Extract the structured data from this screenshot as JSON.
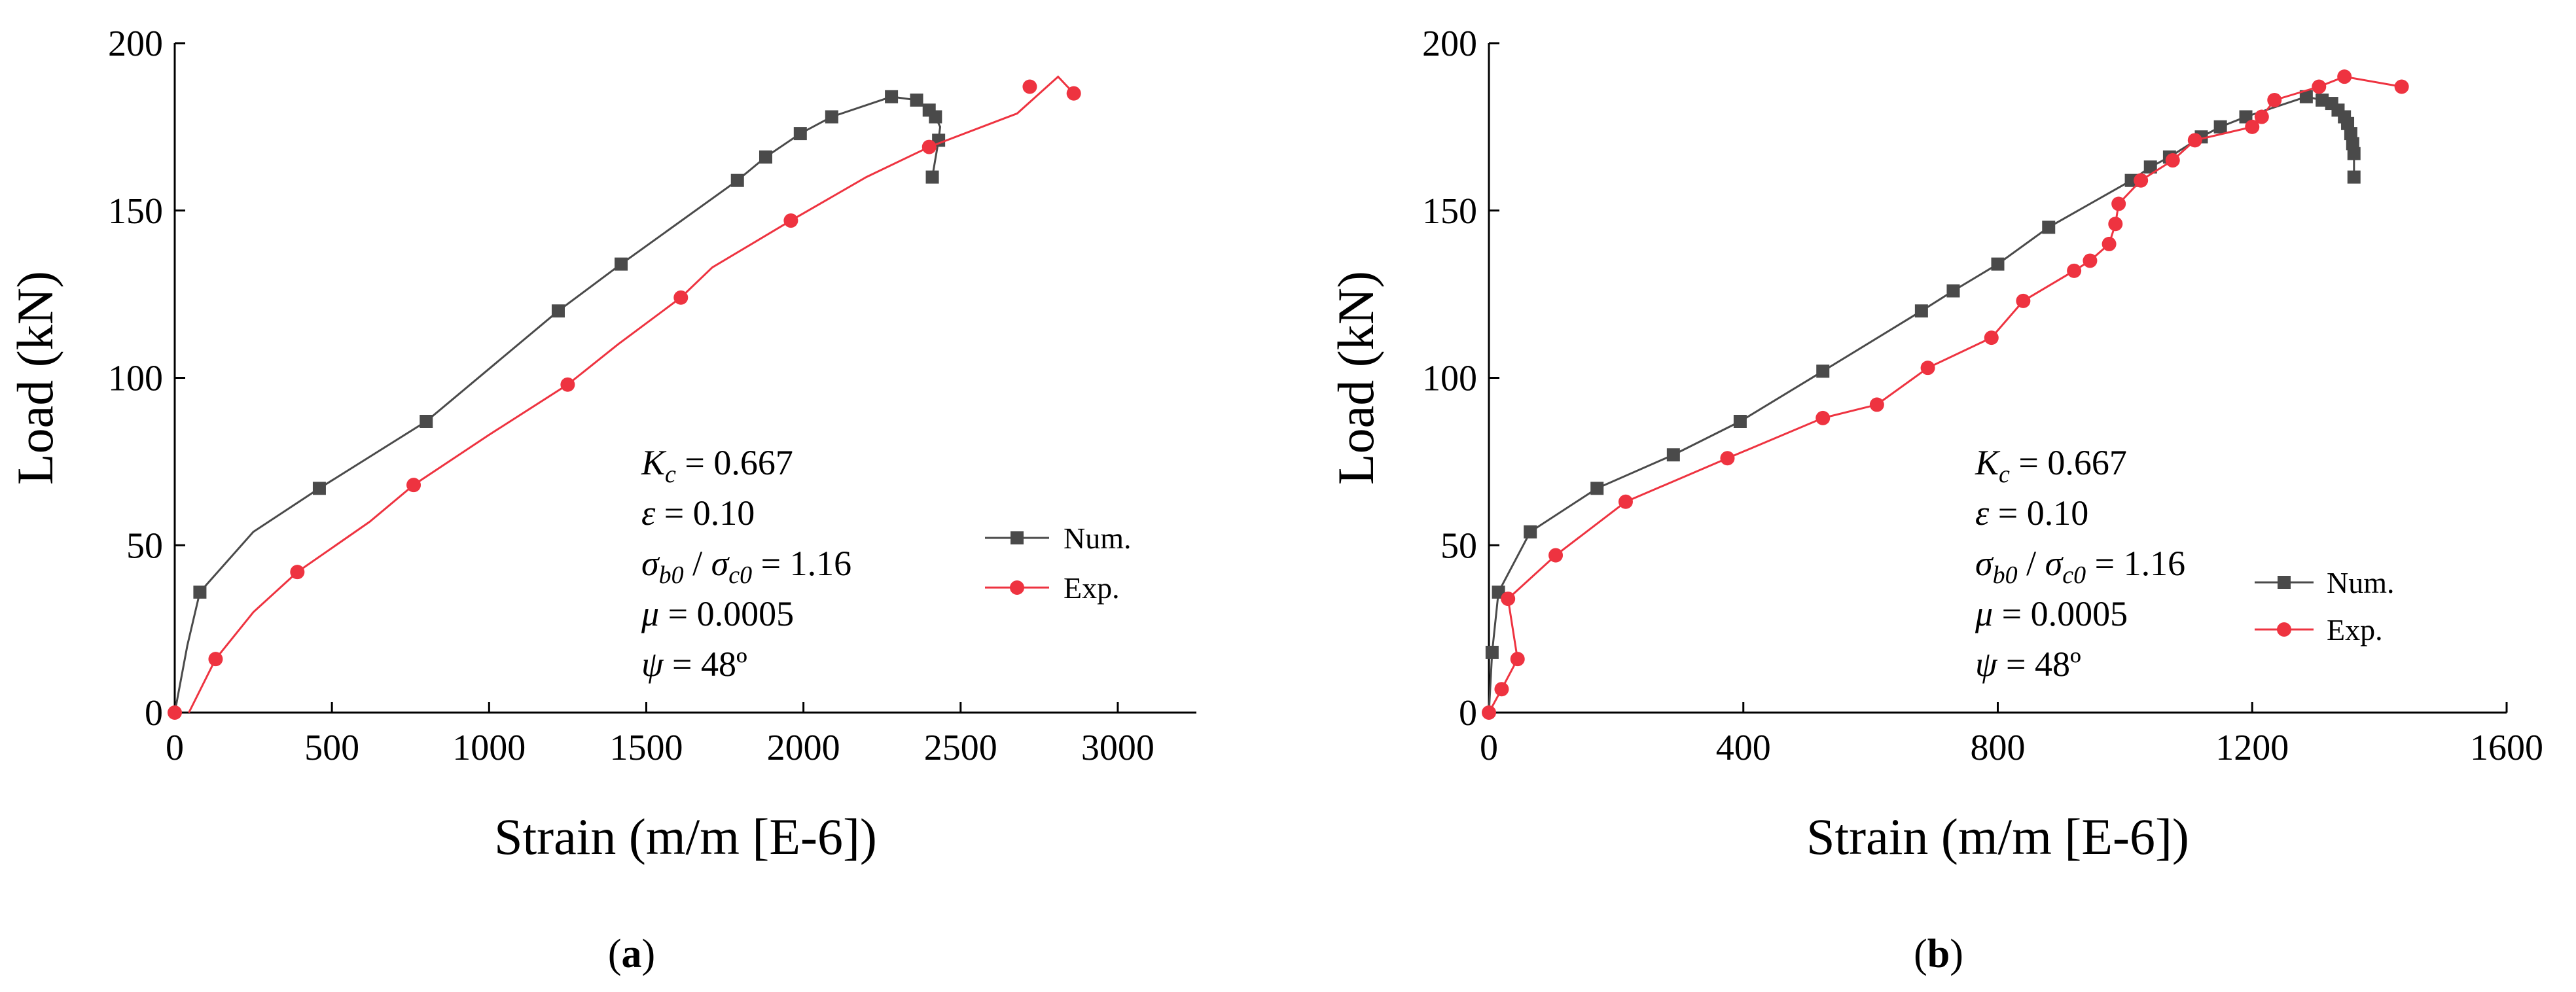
{
  "chart_data": [
    {
      "type": "line",
      "panel_label": "a",
      "xlabel": "Strain (m/m [E-6])",
      "ylabel": "Load (kN)",
      "xlim": [
        0,
        3250
      ],
      "ylim": [
        0,
        200
      ],
      "xticks": [
        0,
        500,
        1000,
        1500,
        2000,
        2500,
        3000
      ],
      "yticks": [
        0,
        50,
        100,
        150,
        200
      ],
      "annotations": [
        {
          "lhs": "K",
          "sub": "c",
          "rhs": " = 0.667"
        },
        {
          "lhs": "ε",
          "sub": "",
          "rhs": " = 0.10"
        },
        {
          "lhs": "σ",
          "sub": "b0",
          "mid": " / ",
          "lhs2": "σ",
          "sub2": "c0",
          "rhs": " = 1.16"
        },
        {
          "lhs": "μ",
          "sub": "",
          "rhs": " = 0.0005"
        },
        {
          "lhs": "ψ",
          "sub": "",
          "rhs": " = 48º"
        }
      ],
      "legend_position": "right-middle",
      "series": [
        {
          "name": "Num.",
          "color": "#4a4a4a",
          "marker": "square",
          "line": [
            [
              0,
              0
            ],
            [
              40,
              20
            ],
            [
              80,
              36
            ],
            [
              250,
              54
            ],
            [
              460,
              67
            ],
            [
              800,
              87
            ],
            [
              1220,
              120
            ],
            [
              1420,
              134
            ],
            [
              1790,
              159
            ],
            [
              1880,
              166
            ],
            [
              1990,
              173
            ],
            [
              2090,
              178
            ],
            [
              2280,
              184
            ],
            [
              2360,
              183
            ],
            [
              2400,
              180
            ],
            [
              2420,
              178
            ],
            [
              2435,
              175
            ],
            [
              2430,
              171
            ],
            [
              2410,
              160
            ]
          ],
          "markers": [
            [
              80,
              36
            ],
            [
              460,
              67
            ],
            [
              800,
              87
            ],
            [
              1220,
              120
            ],
            [
              1420,
              134
            ],
            [
              1790,
              159
            ],
            [
              1880,
              166
            ],
            [
              1990,
              173
            ],
            [
              2090,
              178
            ],
            [
              2280,
              184
            ],
            [
              2360,
              183
            ],
            [
              2400,
              180
            ],
            [
              2420,
              178
            ],
            [
              2430,
              171
            ],
            [
              2410,
              160
            ]
          ]
        },
        {
          "name": "Exp.",
          "color": "#ee3340",
          "marker": "circle",
          "line": [
            [
              45,
              0
            ],
            [
              130,
              16
            ],
            [
              250,
              30
            ],
            [
              390,
              42
            ],
            [
              620,
              57
            ],
            [
              760,
              68
            ],
            [
              1000,
              83
            ],
            [
              1250,
              98
            ],
            [
              1410,
              110
            ],
            [
              1610,
              124
            ],
            [
              1710,
              133
            ],
            [
              1960,
              147
            ],
            [
              2200,
              160
            ],
            [
              2400,
              169
            ],
            [
              2680,
              179
            ],
            [
              2810,
              190
            ],
            [
              2860,
              185
            ]
          ],
          "markers": [
            [
              0,
              0
            ],
            [
              130,
              16
            ],
            [
              390,
              42
            ],
            [
              760,
              68
            ],
            [
              1250,
              98
            ],
            [
              1610,
              124
            ],
            [
              1960,
              147
            ],
            [
              2400,
              169
            ],
            [
              2720,
              187
            ],
            [
              2860,
              185
            ]
          ]
        }
      ]
    },
    {
      "type": "line",
      "panel_label": "b",
      "xlabel": "Strain (m/m [E-6])",
      "ylabel": "Load (kN)",
      "xlim": [
        0,
        1600
      ],
      "ylim": [
        0,
        200
      ],
      "xticks": [
        0,
        400,
        800,
        1200,
        1600
      ],
      "yticks": [
        0,
        50,
        100,
        150,
        200
      ],
      "annotations": [
        {
          "lhs": "K",
          "sub": "c",
          "rhs": " = 0.667"
        },
        {
          "lhs": "ε",
          "sub": "",
          "rhs": " = 0.10"
        },
        {
          "lhs": "σ",
          "sub": "b0",
          "mid": " / ",
          "lhs2": "σ",
          "sub2": "c0",
          "rhs": " = 1.16"
        },
        {
          "lhs": "μ",
          "sub": "",
          "rhs": " = 0.0005"
        },
        {
          "lhs": "ψ",
          "sub": "",
          "rhs": " = 48º"
        }
      ],
      "legend_position": "right-middle",
      "series": [
        {
          "name": "Num.",
          "color": "#4a4a4a",
          "marker": "square",
          "line": [
            [
              0,
              0
            ],
            [
              5,
              18
            ],
            [
              15,
              36
            ],
            [
              65,
              54
            ],
            [
              170,
              67
            ],
            [
              290,
              77
            ],
            [
              395,
              87
            ],
            [
              525,
              102
            ],
            [
              680,
              120
            ],
            [
              730,
              126
            ],
            [
              800,
              134
            ],
            [
              880,
              145
            ],
            [
              1010,
              159
            ],
            [
              1040,
              163
            ],
            [
              1070,
              166
            ],
            [
              1120,
              172
            ],
            [
              1150,
              175
            ],
            [
              1190,
              178
            ],
            [
              1285,
              184
            ],
            [
              1310,
              183
            ],
            [
              1325,
              182
            ],
            [
              1335,
              180
            ],
            [
              1345,
              178
            ],
            [
              1350,
              176
            ],
            [
              1355,
              173
            ],
            [
              1358,
              170
            ],
            [
              1360,
              167
            ],
            [
              1360,
              160
            ]
          ],
          "markers": [
            [
              5,
              18
            ],
            [
              15,
              36
            ],
            [
              65,
              54
            ],
            [
              170,
              67
            ],
            [
              290,
              77
            ],
            [
              395,
              87
            ],
            [
              525,
              102
            ],
            [
              680,
              120
            ],
            [
              730,
              126
            ],
            [
              800,
              134
            ],
            [
              880,
              145
            ],
            [
              1010,
              159
            ],
            [
              1040,
              163
            ],
            [
              1070,
              166
            ],
            [
              1120,
              172
            ],
            [
              1150,
              175
            ],
            [
              1190,
              178
            ],
            [
              1285,
              184
            ],
            [
              1310,
              183
            ],
            [
              1325,
              182
            ],
            [
              1335,
              180
            ],
            [
              1345,
              178
            ],
            [
              1350,
              176
            ],
            [
              1355,
              173
            ],
            [
              1358,
              170
            ],
            [
              1360,
              167
            ],
            [
              1360,
              160
            ]
          ]
        },
        {
          "name": "Exp.",
          "color": "#ee3340",
          "marker": "circle",
          "line": [
            [
              0,
              0
            ],
            [
              20,
              7
            ],
            [
              45,
              16
            ],
            [
              30,
              34
            ],
            [
              105,
              47
            ],
            [
              215,
              63
            ],
            [
              375,
              76
            ],
            [
              525,
              88
            ],
            [
              610,
              92
            ],
            [
              690,
              103
            ],
            [
              790,
              112
            ],
            [
              840,
              123
            ],
            [
              920,
              132
            ],
            [
              945,
              135
            ],
            [
              975,
              140
            ],
            [
              985,
              146
            ],
            [
              990,
              152
            ],
            [
              1025,
              159
            ],
            [
              1075,
              165
            ],
            [
              1110,
              171
            ],
            [
              1200,
              175
            ],
            [
              1215,
              178
            ],
            [
              1235,
              183
            ],
            [
              1305,
              187
            ],
            [
              1345,
              190
            ],
            [
              1435,
              187
            ]
          ],
          "markers": [
            [
              0,
              0
            ],
            [
              20,
              7
            ],
            [
              45,
              16
            ],
            [
              30,
              34
            ],
            [
              105,
              47
            ],
            [
              215,
              63
            ],
            [
              375,
              76
            ],
            [
              525,
              88
            ],
            [
              610,
              92
            ],
            [
              690,
              103
            ],
            [
              790,
              112
            ],
            [
              840,
              123
            ],
            [
              920,
              132
            ],
            [
              945,
              135
            ],
            [
              975,
              140
            ],
            [
              985,
              146
            ],
            [
              990,
              152
            ],
            [
              1025,
              159
            ],
            [
              1075,
              165
            ],
            [
              1110,
              171
            ],
            [
              1200,
              175
            ],
            [
              1215,
              178
            ],
            [
              1235,
              183
            ],
            [
              1305,
              187
            ],
            [
              1345,
              190
            ],
            [
              1435,
              187
            ]
          ]
        }
      ]
    }
  ]
}
